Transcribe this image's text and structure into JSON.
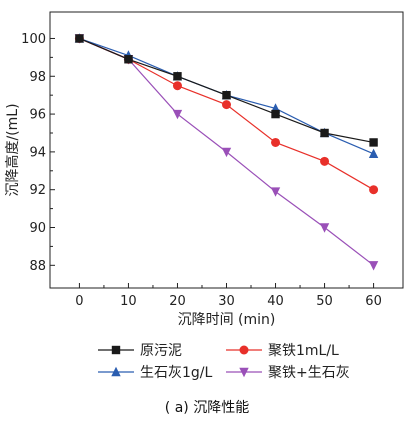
{
  "chart_data": {
    "type": "line",
    "xlabel": "沉降时间 (min)",
    "ylabel": "沉降高度/(mL)",
    "x": [
      0,
      10,
      20,
      30,
      40,
      50,
      60
    ],
    "xticks": [
      0,
      10,
      20,
      30,
      40,
      50,
      60
    ],
    "yticks": [
      88,
      90,
      92,
      94,
      96,
      98,
      100
    ],
    "xlim": [
      -6,
      66
    ],
    "ylim": [
      86.8,
      101.4
    ],
    "grid": false,
    "legend_position": "bottom",
    "series": [
      {
        "name": "原污泥",
        "marker": "square",
        "color": "#1a1a1a",
        "values": [
          100,
          98.9,
          98.0,
          97.0,
          96.0,
          95.0,
          94.5
        ]
      },
      {
        "name": "聚铁1mL/L",
        "marker": "circle",
        "color": "#e8302a",
        "values": [
          100,
          98.9,
          97.5,
          96.5,
          94.5,
          93.5,
          92.0
        ]
      },
      {
        "name": "生石灰1g/L",
        "marker": "triangle-up",
        "color": "#2a5db0",
        "values": [
          100,
          99.1,
          98.0,
          97.0,
          96.3,
          95.0,
          93.9
        ]
      },
      {
        "name": "聚铁+生石灰",
        "marker": "triangle-down",
        "color": "#9a50b8",
        "values": [
          100,
          98.9,
          96.0,
          94.0,
          91.9,
          90.0,
          88.0
        ]
      }
    ],
    "caption": "( a) 沉降性能"
  }
}
